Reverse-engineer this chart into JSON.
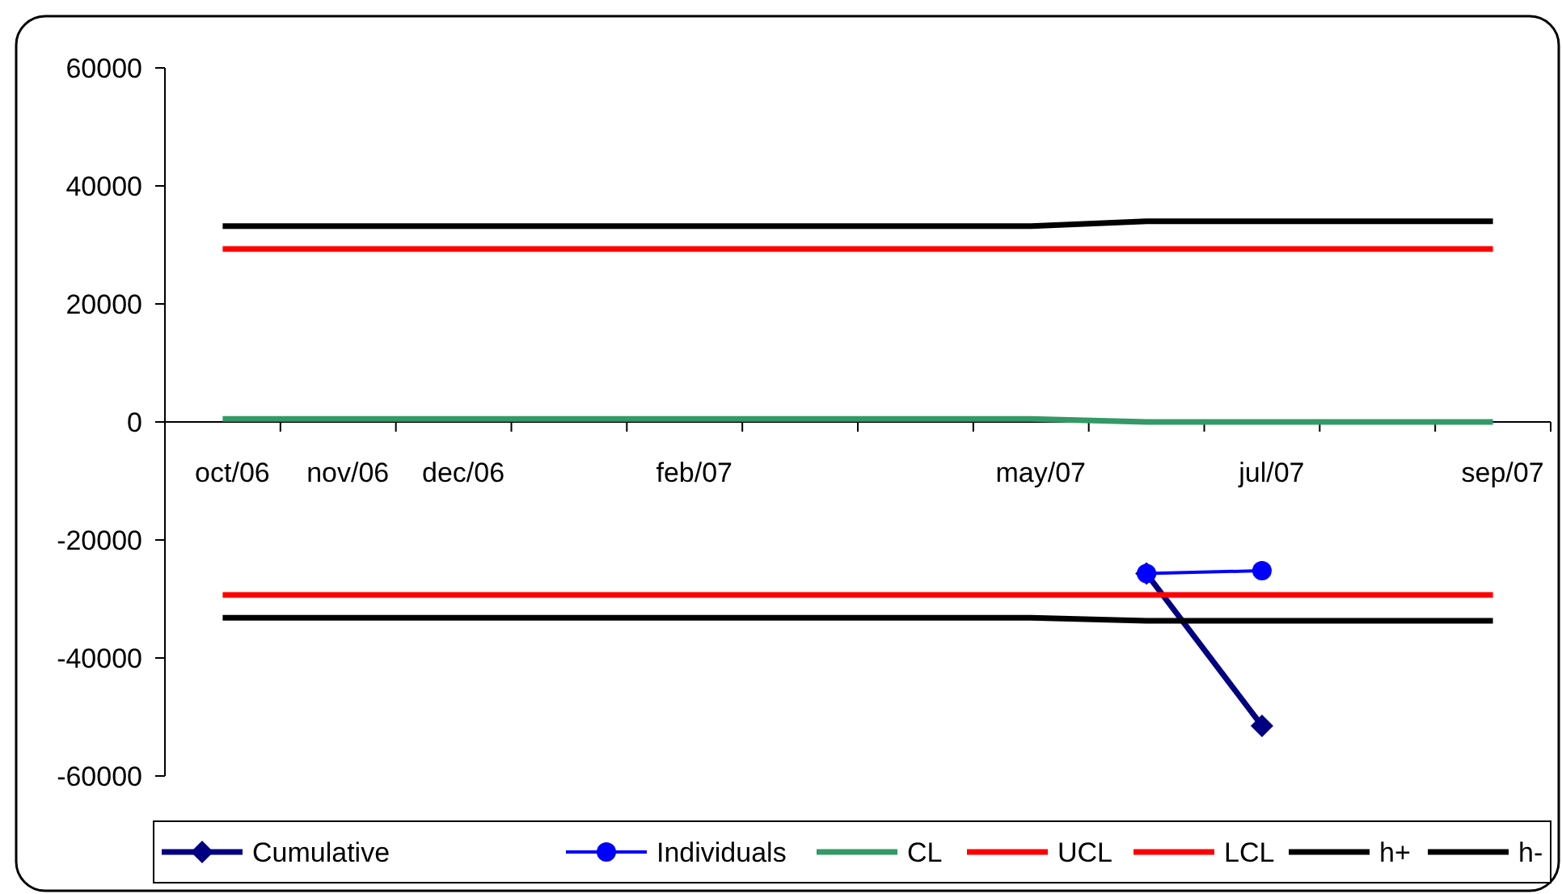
{
  "chart_data": {
    "type": "line",
    "categories": [
      "oct/06",
      "nov/06",
      "dec/06",
      null,
      "feb/07",
      null,
      null,
      "may/07",
      null,
      "jul/07",
      null,
      "sep/07"
    ],
    "ylim": [
      -60000,
      60000
    ],
    "yticks": [
      -60000,
      -40000,
      -20000,
      0,
      20000,
      40000,
      60000
    ],
    "grid": false,
    "legend": "bottom",
    "series": [
      {
        "name": "Cumulative",
        "color": "#000080",
        "marker": "diamond",
        "values": [
          null,
          null,
          null,
          null,
          null,
          null,
          null,
          null,
          -25700,
          -51500,
          null,
          null
        ]
      },
      {
        "name": "Individuals",
        "color": "#0000ff",
        "marker": "circle",
        "values": [
          null,
          null,
          null,
          null,
          null,
          null,
          null,
          null,
          -25700,
          -25200,
          null,
          null
        ]
      },
      {
        "name": "CL",
        "color": "#339966",
        "marker": "none",
        "values": [
          500,
          500,
          500,
          500,
          500,
          500,
          500,
          500,
          0,
          0,
          0,
          0
        ]
      },
      {
        "name": "UCL",
        "color": "#ff0000",
        "marker": "none",
        "values": [
          29300,
          29300,
          29300,
          29300,
          29300,
          29300,
          29300,
          29300,
          29300,
          29300,
          29300,
          29300
        ]
      },
      {
        "name": "LCL",
        "color": "#ff0000",
        "marker": "none",
        "values": [
          -29300,
          -29300,
          -29300,
          -29300,
          -29300,
          -29300,
          -29300,
          -29300,
          -29300,
          -29300,
          -29300,
          -29300
        ]
      },
      {
        "name": "h+",
        "color": "#000000",
        "marker": "none",
        "values": [
          33200,
          33200,
          33200,
          33200,
          33200,
          33200,
          33200,
          33200,
          34000,
          34000,
          34000,
          34000
        ]
      },
      {
        "name": "h-",
        "color": "#000000",
        "marker": "none",
        "values": [
          -33200,
          -33200,
          -33200,
          -33200,
          -33200,
          -33200,
          -33200,
          -33200,
          -33700,
          -33700,
          -33700,
          -33700
        ]
      }
    ]
  }
}
